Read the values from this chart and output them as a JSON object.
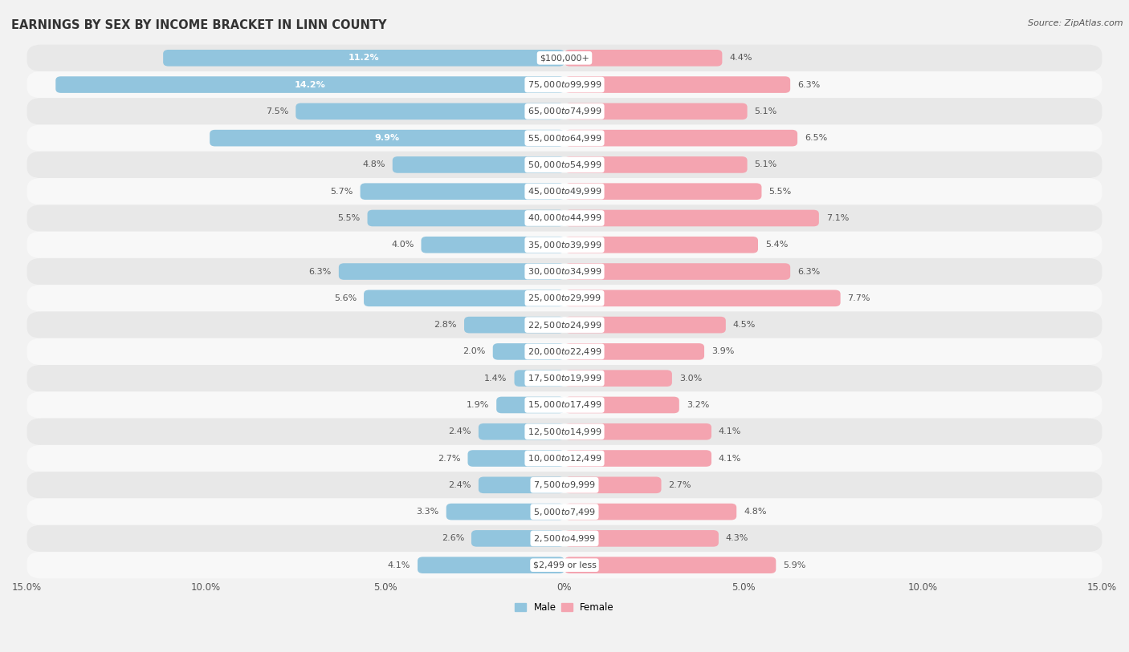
{
  "title": "EARNINGS BY SEX BY INCOME BRACKET IN LINN COUNTY",
  "source": "Source: ZipAtlas.com",
  "categories": [
    "$2,499 or less",
    "$2,500 to $4,999",
    "$5,000 to $7,499",
    "$7,500 to $9,999",
    "$10,000 to $12,499",
    "$12,500 to $14,999",
    "$15,000 to $17,499",
    "$17,500 to $19,999",
    "$20,000 to $22,499",
    "$22,500 to $24,999",
    "$25,000 to $29,999",
    "$30,000 to $34,999",
    "$35,000 to $39,999",
    "$40,000 to $44,999",
    "$45,000 to $49,999",
    "$50,000 to $54,999",
    "$55,000 to $64,999",
    "$65,000 to $74,999",
    "$75,000 to $99,999",
    "$100,000+"
  ],
  "male": [
    4.1,
    2.6,
    3.3,
    2.4,
    2.7,
    2.4,
    1.9,
    1.4,
    2.0,
    2.8,
    5.6,
    6.3,
    4.0,
    5.5,
    5.7,
    4.8,
    9.9,
    7.5,
    14.2,
    11.2
  ],
  "female": [
    5.9,
    4.3,
    4.8,
    2.7,
    4.1,
    4.1,
    3.2,
    3.0,
    3.9,
    4.5,
    7.7,
    6.3,
    5.4,
    7.1,
    5.5,
    5.1,
    6.5,
    5.1,
    6.3,
    4.4
  ],
  "male_color": "#92c5de",
  "female_color": "#f4a4b0",
  "male_label": "Male",
  "female_label": "Female",
  "axis_max": 15.0,
  "bg_color": "#f2f2f2",
  "row_color_even": "#e8e8e8",
  "row_color_odd": "#f8f8f8",
  "title_fontsize": 10.5,
  "label_fontsize": 8.0,
  "tick_fontsize": 8.5,
  "source_fontsize": 8,
  "cat_label_fontsize": 8.0
}
